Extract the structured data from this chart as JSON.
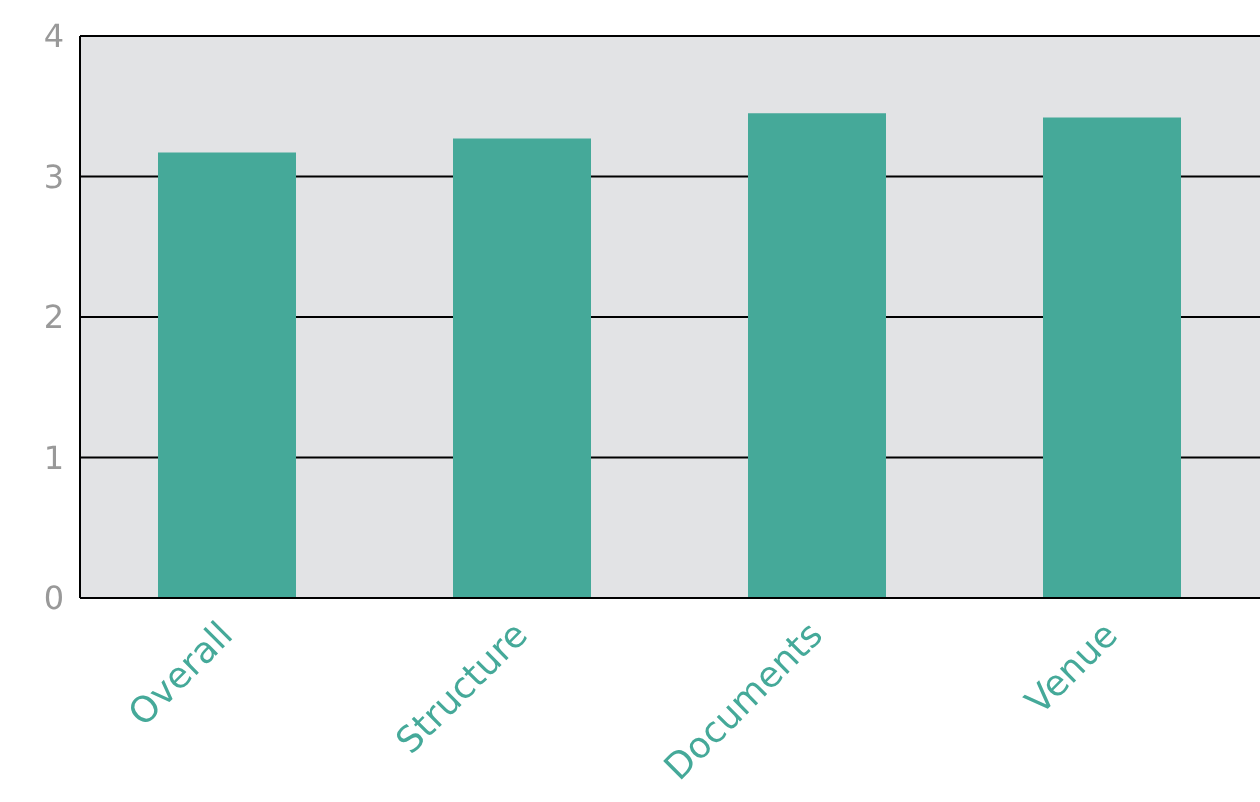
{
  "chart_data": {
    "type": "bar",
    "categories": [
      "Overall",
      "Structure",
      "Documents",
      "Venue"
    ],
    "values": [
      3.17,
      3.27,
      3.45,
      3.42
    ],
    "color": "#45a999",
    "ylim": [
      0,
      4
    ],
    "yticks": [
      0,
      1,
      2,
      3,
      4
    ],
    "grid": "y"
  }
}
